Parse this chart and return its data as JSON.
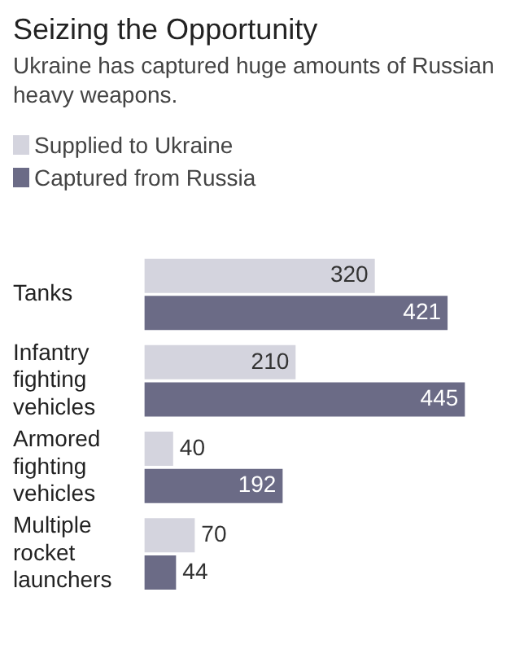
{
  "chart_data": {
    "type": "bar",
    "orientation": "horizontal",
    "title": "Seizing the Opportunity",
    "subtitle": "Ukraine has captured huge amounts of Russian heavy weapons.",
    "categories": [
      "Tanks",
      "Infantry fighting vehicles",
      "Armored fighting vehicles",
      "Multiple rocket launchers"
    ],
    "series": [
      {
        "name": "Supplied to Ukraine",
        "color": "#d4d4de",
        "values": [
          320,
          210,
          40,
          70
        ]
      },
      {
        "name": "Captured from Russia",
        "color": "#6b6b86",
        "values": [
          421,
          445,
          192,
          44
        ]
      }
    ],
    "data_labels": true,
    "legend": "top left"
  }
}
